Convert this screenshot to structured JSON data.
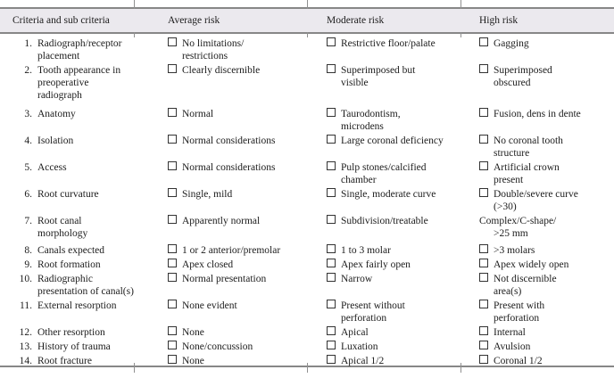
{
  "colors": {
    "header_bg": "#ebe9ee",
    "rule": "#878787",
    "tick": "#909090",
    "text": "#1c1c1c"
  },
  "table": {
    "columns": [
      "Criteria and sub criteria",
      "Average risk",
      "Moderate risk",
      "High risk"
    ],
    "rows": [
      {
        "num": "1.",
        "criteria": "Radiograph/receptor\nplacement",
        "cells": [
          {
            "box": true,
            "text": "No limitations/\nrestrictions"
          },
          {
            "box": true,
            "text": "Restrictive floor/palate"
          },
          {
            "box": true,
            "text": "Gagging"
          }
        ]
      },
      {
        "num": "2.",
        "criteria": "Tooth appearance in\npreoperative\nradiograph",
        "cells": [
          {
            "box": true,
            "text": "Clearly discernible"
          },
          {
            "box": true,
            "text": "Superimposed but\nvisible"
          },
          {
            "box": true,
            "text": "Superimposed\nobscured"
          }
        ]
      },
      {
        "num": "3.",
        "criteria": "Anatomy",
        "cells": [
          {
            "box": true,
            "text": "Normal"
          },
          {
            "box": true,
            "text": "Taurodontism,\nmicrodens"
          },
          {
            "box": true,
            "text": "Fusion, dens in dente"
          }
        ]
      },
      {
        "num": "4.",
        "criteria": "Isolation",
        "cells": [
          {
            "box": true,
            "text": "Normal considerations"
          },
          {
            "box": true,
            "text": "Large coronal deficiency"
          },
          {
            "box": true,
            "text": "No coronal tooth\nstructure"
          }
        ]
      },
      {
        "num": "5.",
        "criteria": "Access",
        "cells": [
          {
            "box": true,
            "text": "Normal considerations"
          },
          {
            "box": true,
            "text": "Pulp stones/calcified\nchamber"
          },
          {
            "box": true,
            "text": "Artificial crown\npresent"
          }
        ]
      },
      {
        "num": "6.",
        "criteria": "Root curvature",
        "cells": [
          {
            "box": true,
            "text": "Single, mild"
          },
          {
            "box": true,
            "text": "Single, moderate curve"
          },
          {
            "box": true,
            "text": "Double/severe curve\n(>30)"
          }
        ]
      },
      {
        "num": "7.",
        "criteria": "Root canal\nmorphology",
        "cells": [
          {
            "box": true,
            "text": "Apparently normal"
          },
          {
            "box": true,
            "text": "Subdivision/treatable"
          },
          {
            "box": false,
            "text": "Complex/C-shape/\n>25 mm"
          }
        ]
      },
      {
        "num": "8.",
        "criteria": "Canals expected",
        "cells": [
          {
            "box": true,
            "text": "1 or 2 anterior/premolar"
          },
          {
            "box": true,
            "text": "1 to 3 molar"
          },
          {
            "box": true,
            "text": ">3 molars"
          }
        ]
      },
      {
        "num": "9.",
        "criteria": "Root formation",
        "cells": [
          {
            "box": true,
            "text": "Apex closed"
          },
          {
            "box": true,
            "text": "Apex fairly open"
          },
          {
            "box": true,
            "text": "Apex widely open"
          }
        ]
      },
      {
        "num": "10.",
        "criteria": "Radiographic\npresentation of canal(s)",
        "cells": [
          {
            "box": true,
            "text": "Normal presentation"
          },
          {
            "box": true,
            "text": "Narrow"
          },
          {
            "box": true,
            "text": "Not discernible\narea(s)"
          }
        ]
      },
      {
        "num": "11.",
        "criteria": "External resorption",
        "cells": [
          {
            "box": true,
            "text": "None evident"
          },
          {
            "box": true,
            "text": "Present without\nperforation"
          },
          {
            "box": true,
            "text": "Present with\nperforation"
          }
        ]
      },
      {
        "num": "12.",
        "criteria": "Other resorption",
        "cells": [
          {
            "box": true,
            "text": "None"
          },
          {
            "box": true,
            "text": "Apical"
          },
          {
            "box": true,
            "text": "Internal"
          }
        ]
      },
      {
        "num": "13.",
        "criteria": "History of trauma",
        "cells": [
          {
            "box": true,
            "text": "None/concussion"
          },
          {
            "box": true,
            "text": "Luxation"
          },
          {
            "box": true,
            "text": "Avulsion"
          }
        ]
      },
      {
        "num": "14.",
        "criteria": "Root fracture",
        "cells": [
          {
            "box": true,
            "text": "None"
          },
          {
            "box": true,
            "text": "Apical 1/2"
          },
          {
            "box": true,
            "text": "Coronal 1/2"
          }
        ]
      }
    ]
  }
}
